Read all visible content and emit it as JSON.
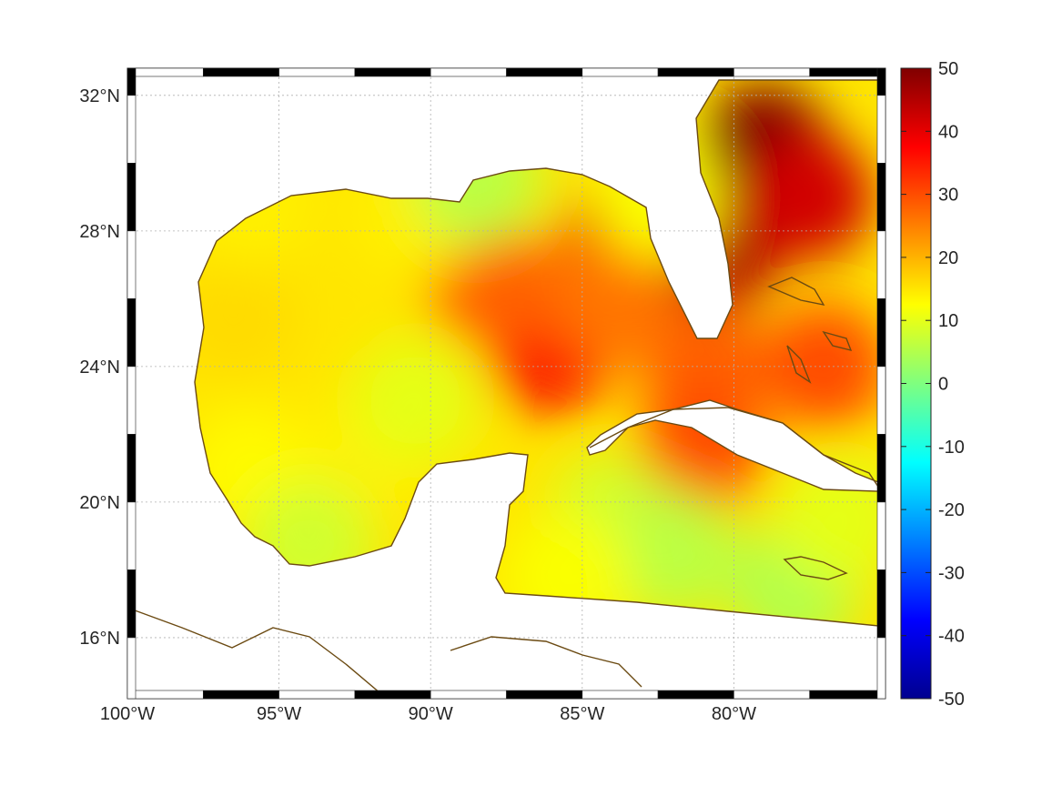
{
  "map": {
    "region": "Gulf of Mexico and Caribbean",
    "extent": {
      "lon": [
        -100,
        -75
      ],
      "lat": [
        14.2,
        32.8
      ]
    },
    "lon_ticks": [
      {
        "value": -100,
        "label": "100°W"
      },
      {
        "value": -95,
        "label": "95°W"
      },
      {
        "value": -90,
        "label": "90°W"
      },
      {
        "value": -85,
        "label": "85°W"
      },
      {
        "value": -80,
        "label": "80°W"
      }
    ],
    "lat_ticks": [
      {
        "value": 32,
        "label": "32°N"
      },
      {
        "value": 28,
        "label": "28°N"
      },
      {
        "value": 24,
        "label": "24°N"
      },
      {
        "value": 20,
        "label": "20°N"
      },
      {
        "value": 16,
        "label": "16°N"
      }
    ],
    "grid": "dotted",
    "coastline_color": "#6b4a12",
    "field": {
      "colormap": "jet",
      "range": [
        -50,
        50
      ],
      "hotspots": [
        {
          "lon": -79.0,
          "lat": 30.5,
          "value": 50
        },
        {
          "lon": -80.5,
          "lat": 27.5,
          "value": 45
        },
        {
          "lon": -77.5,
          "lat": 29.0,
          "value": 42
        },
        {
          "lon": -83.5,
          "lat": 27.7,
          "value": 40
        },
        {
          "lon": -86.0,
          "lat": 24.5,
          "value": 38
        },
        {
          "lon": -85.5,
          "lat": 25.5,
          "value": 34
        },
        {
          "lon": -88.0,
          "lat": 26.5,
          "value": 28
        },
        {
          "lon": -81.0,
          "lat": 24.0,
          "value": 28
        },
        {
          "lon": -77.0,
          "lat": 24.0,
          "value": 30
        },
        {
          "lon": -81.0,
          "lat": 21.7,
          "value": 30
        },
        {
          "lon": -84.0,
          "lat": 26.0,
          "value": 26
        },
        {
          "lon": -96.5,
          "lat": 25.5,
          "value": 16
        },
        {
          "lon": -92.0,
          "lat": 21.5,
          "value": 14
        },
        {
          "lon": -96.0,
          "lat": 21.0,
          "value": 13
        },
        {
          "lon": -90.5,
          "lat": 28.5,
          "value": 14
        },
        {
          "lon": -88.5,
          "lat": 29.5,
          "value": 6
        },
        {
          "lon": -90.5,
          "lat": 23.0,
          "value": 10
        },
        {
          "lon": -84.0,
          "lat": 19.5,
          "value": 8
        },
        {
          "lon": -82.0,
          "lat": 18.5,
          "value": 6
        },
        {
          "lon": -78.0,
          "lat": 17.5,
          "value": 5
        },
        {
          "lon": -85.5,
          "lat": 17.8,
          "value": 12
        },
        {
          "lon": -76.5,
          "lat": 19.5,
          "value": 10
        },
        {
          "lon": -94.0,
          "lat": 18.8,
          "value": 8
        },
        {
          "lon": -96.0,
          "lat": 28.8,
          "value": 14
        },
        {
          "lon": -82.5,
          "lat": 29.0,
          "value": 12
        }
      ]
    }
  },
  "colorbar": {
    "ticks": [
      {
        "value": 50,
        "label": "50"
      },
      {
        "value": 40,
        "label": "40"
      },
      {
        "value": 30,
        "label": "30"
      },
      {
        "value": 20,
        "label": "20"
      },
      {
        "value": 10,
        "label": "10"
      },
      {
        "value": 0,
        "label": "0"
      },
      {
        "value": -10,
        "label": "-10"
      },
      {
        "value": -20,
        "label": "-20"
      },
      {
        "value": -30,
        "label": "-30"
      },
      {
        "value": -40,
        "label": "-40"
      },
      {
        "value": -50,
        "label": "-50"
      }
    ]
  }
}
